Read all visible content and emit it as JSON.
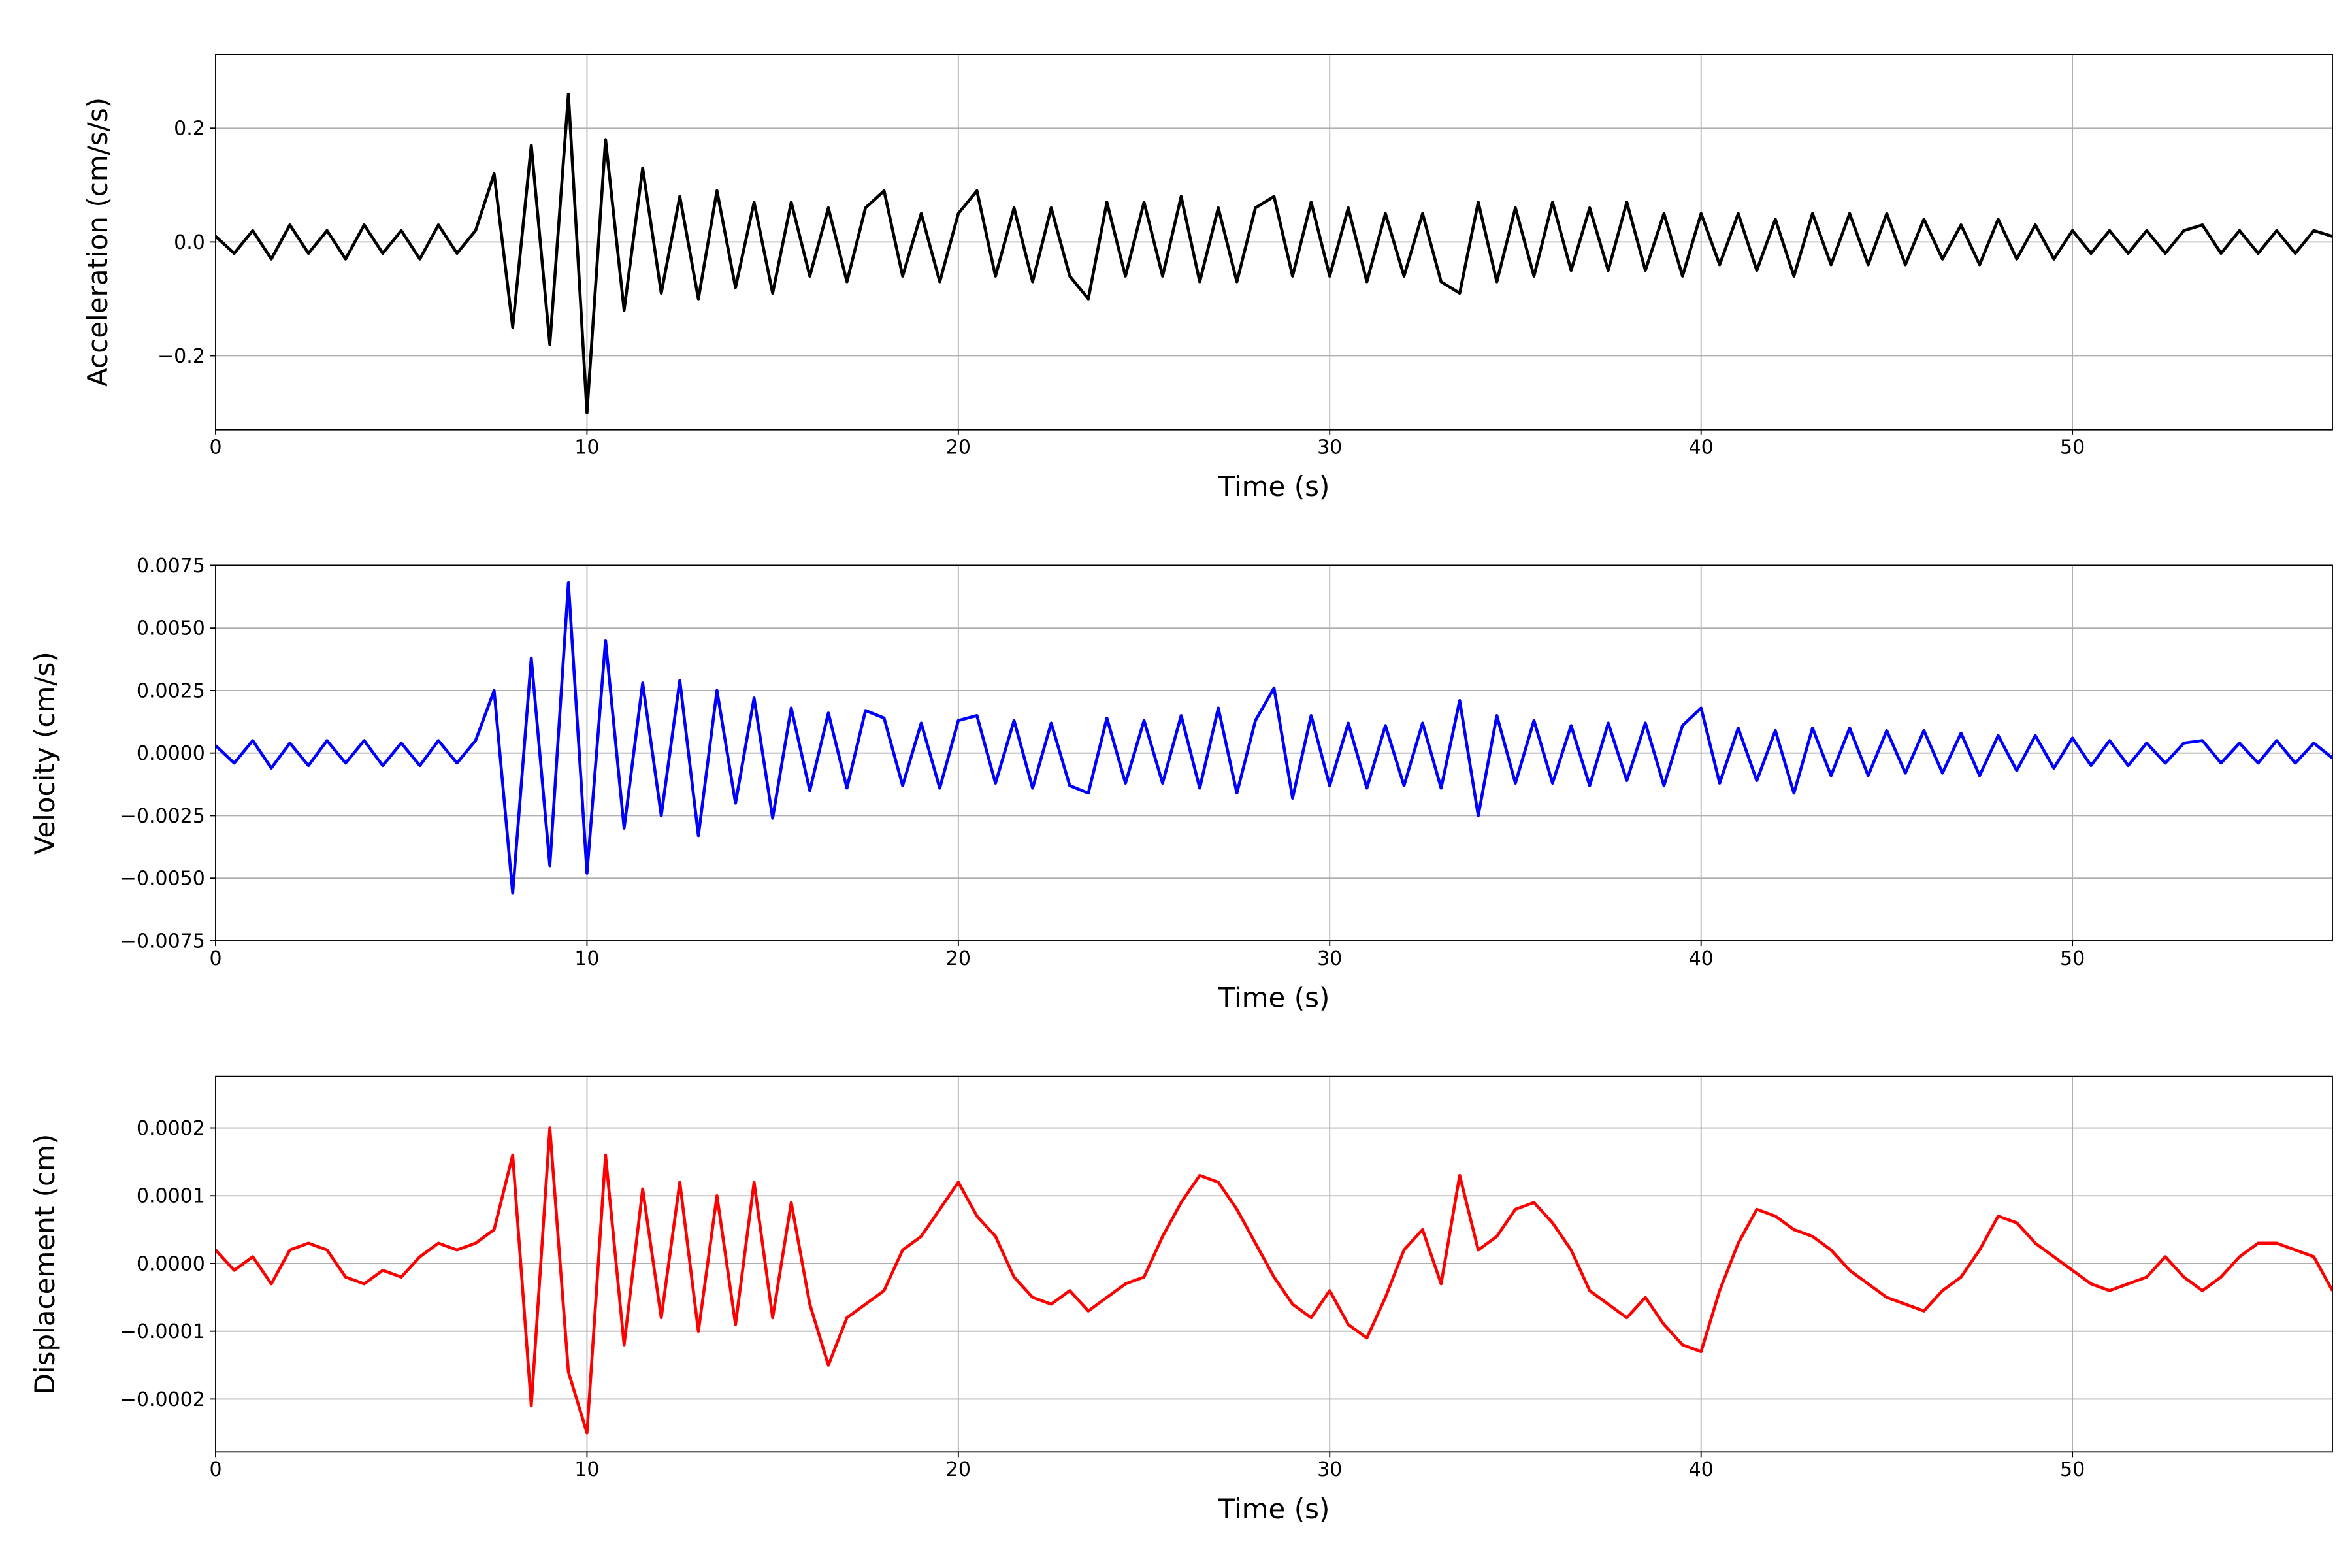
{
  "chart_data": [
    {
      "type": "line",
      "ylabel": "Acceleration (cm/s/s)",
      "xlabel": "Time (s)",
      "color": "#000000",
      "grid": true,
      "xlim": [
        0,
        57
      ],
      "xticks": [
        0,
        10,
        20,
        30,
        40,
        50
      ],
      "ylim": [
        -0.33,
        0.33
      ],
      "yticks": [
        {
          "value": -0.2,
          "label": "−0.2"
        },
        {
          "value": 0,
          "label": "0.0"
        },
        0.2
      ],
      "x": [
        0,
        0.5,
        1,
        1.5,
        2,
        2.5,
        3,
        3.5,
        4,
        4.5,
        5,
        5.5,
        6,
        6.5,
        7,
        7.5,
        8,
        8.5,
        9,
        9.5,
        10,
        10.5,
        11,
        11.5,
        12,
        12.5,
        13,
        13.5,
        14,
        14.5,
        15,
        15.5,
        16,
        16.5,
        17,
        17.5,
        18,
        18.5,
        19,
        19.5,
        20,
        20.5,
        21,
        21.5,
        22,
        22.5,
        23,
        23.5,
        24,
        24.5,
        25,
        25.5,
        26,
        26.5,
        27,
        27.5,
        28,
        28.5,
        29,
        29.5,
        30,
        30.5,
        31,
        31.5,
        32,
        32.5,
        33,
        33.5,
        34,
        34.5,
        35,
        35.5,
        36,
        36.5,
        37,
        37.5,
        38,
        38.5,
        39,
        39.5,
        40,
        40.5,
        41,
        41.5,
        42,
        42.5,
        43,
        43.5,
        44,
        44.5,
        45,
        45.5,
        46,
        46.5,
        47,
        47.5,
        48,
        48.5,
        49,
        49.5,
        50,
        50.5,
        51,
        51.5,
        52,
        52.5,
        53,
        53.5,
        54,
        54.5,
        55,
        55.5,
        56,
        56.5,
        57
      ],
      "values": [
        0.01,
        -0.02,
        0.02,
        -0.03,
        0.03,
        -0.02,
        0.02,
        -0.03,
        0.03,
        -0.02,
        0.02,
        -0.03,
        0.03,
        -0.02,
        0.02,
        0.12,
        -0.15,
        0.17,
        -0.18,
        0.26,
        -0.3,
        0.18,
        -0.12,
        0.13,
        -0.09,
        0.08,
        -0.1,
        0.09,
        -0.08,
        0.07,
        -0.09,
        0.07,
        -0.06,
        0.06,
        -0.07,
        0.06,
        0.09,
        -0.06,
        0.05,
        -0.07,
        0.05,
        0.09,
        -0.06,
        0.06,
        -0.07,
        0.06,
        -0.06,
        -0.1,
        0.07,
        -0.06,
        0.07,
        -0.06,
        0.08,
        -0.07,
        0.06,
        -0.07,
        0.06,
        0.08,
        -0.06,
        0.07,
        -0.06,
        0.06,
        -0.07,
        0.05,
        -0.06,
        0.05,
        -0.07,
        -0.09,
        0.07,
        -0.07,
        0.06,
        -0.06,
        0.07,
        -0.05,
        0.06,
        -0.05,
        0.07,
        -0.05,
        0.05,
        -0.06,
        0.05,
        -0.04,
        0.05,
        -0.05,
        0.04,
        -0.06,
        0.05,
        -0.04,
        0.05,
        -0.04,
        0.05,
        -0.04,
        0.04,
        -0.03,
        0.03,
        -0.04,
        0.04,
        -0.03,
        0.03,
        -0.03,
        0.02,
        -0.02,
        0.02,
        -0.02,
        0.02,
        -0.02,
        0.02,
        0.03,
        -0.02,
        0.02,
        -0.02,
        0.02,
        -0.02,
        0.02,
        0.01
      ]
    },
    {
      "type": "line",
      "ylabel": "Velocity (cm/s)",
      "xlabel": "Time (s)",
      "color": "#0000ff",
      "grid": true,
      "xlim": [
        0,
        57
      ],
      "xticks": [
        0,
        10,
        20,
        30,
        40,
        50
      ],
      "ylim": [
        -0.0075,
        0.0075
      ],
      "yticks": [
        {
          "value": -0.0075,
          "label": "−0.0075"
        },
        {
          "value": -0.005,
          "label": "−0.0050"
        },
        {
          "value": -0.0025,
          "label": "−0.0025"
        },
        {
          "value": 0,
          "label": "0.0000"
        },
        0.0025,
        {
          "value": 0.005,
          "label": "0.0050"
        },
        0.0075
      ],
      "x": [
        0,
        0.5,
        1,
        1.5,
        2,
        2.5,
        3,
        3.5,
        4,
        4.5,
        5,
        5.5,
        6,
        6.5,
        7,
        7.5,
        8,
        8.5,
        9,
        9.5,
        10,
        10.5,
        11,
        11.5,
        12,
        12.5,
        13,
        13.5,
        14,
        14.5,
        15,
        15.5,
        16,
        16.5,
        17,
        17.5,
        18,
        18.5,
        19,
        19.5,
        20,
        20.5,
        21,
        21.5,
        22,
        22.5,
        23,
        23.5,
        24,
        24.5,
        25,
        25.5,
        26,
        26.5,
        27,
        27.5,
        28,
        28.5,
        29,
        29.5,
        30,
        30.5,
        31,
        31.5,
        32,
        32.5,
        33,
        33.5,
        34,
        34.5,
        35,
        35.5,
        36,
        36.5,
        37,
        37.5,
        38,
        38.5,
        39,
        39.5,
        40,
        40.5,
        41,
        41.5,
        42,
        42.5,
        43,
        43.5,
        44,
        44.5,
        45,
        45.5,
        46,
        46.5,
        47,
        47.5,
        48,
        48.5,
        49,
        49.5,
        50,
        50.5,
        51,
        51.5,
        52,
        52.5,
        53,
        53.5,
        54,
        54.5,
        55,
        55.5,
        56,
        56.5,
        57
      ],
      "values": [
        0.0003,
        -0.0004,
        0.0005,
        -0.0006,
        0.0004,
        -0.0005,
        0.0005,
        -0.0004,
        0.0005,
        -0.0005,
        0.0004,
        -0.0005,
        0.0005,
        -0.0004,
        0.0005,
        0.0025,
        -0.0056,
        0.0038,
        -0.0045,
        0.0068,
        -0.0048,
        0.0045,
        -0.003,
        0.0028,
        -0.0025,
        0.0029,
        -0.0033,
        0.0025,
        -0.002,
        0.0022,
        -0.0026,
        0.0018,
        -0.0015,
        0.0016,
        -0.0014,
        0.0017,
        0.0014,
        -0.0013,
        0.0012,
        -0.0014,
        0.0013,
        0.0015,
        -0.0012,
        0.0013,
        -0.0014,
        0.0012,
        -0.0013,
        -0.0016,
        0.0014,
        -0.0012,
        0.0013,
        -0.0012,
        0.0015,
        -0.0014,
        0.0018,
        -0.0016,
        0.0013,
        0.0026,
        -0.0018,
        0.0015,
        -0.0013,
        0.0012,
        -0.0014,
        0.0011,
        -0.0013,
        0.0012,
        -0.0014,
        0.0021,
        -0.0025,
        0.0015,
        -0.0012,
        0.0013,
        -0.0012,
        0.0011,
        -0.0013,
        0.0012,
        -0.0011,
        0.0012,
        -0.0013,
        0.0011,
        0.0018,
        -0.0012,
        0.001,
        -0.0011,
        0.0009,
        -0.0016,
        0.001,
        -0.0009,
        0.001,
        -0.0009,
        0.0009,
        -0.0008,
        0.0009,
        -0.0008,
        0.0008,
        -0.0009,
        0.0007,
        -0.0007,
        0.0007,
        -0.0006,
        0.0006,
        -0.0005,
        0.0005,
        -0.0005,
        0.0004,
        -0.0004,
        0.0004,
        0.0005,
        -0.0004,
        0.0004,
        -0.0004,
        0.0005,
        -0.0004,
        0.0004,
        -0.0002
      ]
    },
    {
      "type": "line",
      "ylabel": "Displacement (cm)",
      "xlabel": "Time (s)",
      "color": "#ff0000",
      "grid": true,
      "xlim": [
        0,
        57
      ],
      "xticks": [
        0,
        10,
        20,
        30,
        40,
        50
      ],
      "ylim": [
        -0.000278,
        0.000276
      ],
      "yticks": [
        {
          "value": -0.0002,
          "label": "−0.0002"
        },
        {
          "value": -0.0001,
          "label": "−0.0001"
        },
        {
          "value": 0,
          "label": "0.0000"
        },
        0.0001,
        0.0002
      ],
      "x": [
        0,
        0.5,
        1,
        1.5,
        2,
        2.5,
        3,
        3.5,
        4,
        4.5,
        5,
        5.5,
        6,
        6.5,
        7,
        7.5,
        8,
        8.5,
        9,
        9.5,
        10,
        10.5,
        11,
        11.5,
        12,
        12.5,
        13,
        13.5,
        14,
        14.5,
        15,
        15.5,
        16,
        16.5,
        17,
        17.5,
        18,
        18.5,
        19,
        19.5,
        20,
        20.5,
        21,
        21.5,
        22,
        22.5,
        23,
        23.5,
        24,
        24.5,
        25,
        25.5,
        26,
        26.5,
        27,
        27.5,
        28,
        28.5,
        29,
        29.5,
        30,
        30.5,
        31,
        31.5,
        32,
        32.5,
        33,
        33.5,
        34,
        34.5,
        35,
        35.5,
        36,
        36.5,
        37,
        37.5,
        38,
        38.5,
        39,
        39.5,
        40,
        40.5,
        41,
        41.5,
        42,
        42.5,
        43,
        43.5,
        44,
        44.5,
        45,
        45.5,
        46,
        46.5,
        47,
        47.5,
        48,
        48.5,
        49,
        49.5,
        50,
        50.5,
        51,
        51.5,
        52,
        52.5,
        53,
        53.5,
        54,
        54.5,
        55,
        55.5,
        56,
        56.5,
        57
      ],
      "values": [
        2e-05,
        -1e-05,
        1e-05,
        -3e-05,
        2e-05,
        3e-05,
        2e-05,
        -2e-05,
        -3e-05,
        -1e-05,
        -2e-05,
        1e-05,
        3e-05,
        2e-05,
        3e-05,
        5e-05,
        0.00016,
        -0.00021,
        0.0002,
        -0.00016,
        -0.00025,
        0.00016,
        -0.00012,
        0.00011,
        -8e-05,
        0.00012,
        -0.0001,
        0.0001,
        -9e-05,
        0.00012,
        -8e-05,
        9e-05,
        -6e-05,
        -0.00015,
        -8e-05,
        -6e-05,
        -4e-05,
        2e-05,
        4e-05,
        8e-05,
        0.00012,
        7e-05,
        4e-05,
        -2e-05,
        -5e-05,
        -6e-05,
        -4e-05,
        -7e-05,
        -5e-05,
        -3e-05,
        -2e-05,
        4e-05,
        9e-05,
        0.00013,
        0.00012,
        8e-05,
        3e-05,
        -2e-05,
        -6e-05,
        -8e-05,
        -4e-05,
        -9e-05,
        -0.00011,
        -5e-05,
        2e-05,
        5e-05,
        -3e-05,
        0.00013,
        2e-05,
        4e-05,
        8e-05,
        9e-05,
        6e-05,
        2e-05,
        -4e-05,
        -6e-05,
        -8e-05,
        -5e-05,
        -9e-05,
        -0.00012,
        -0.00013,
        -4e-05,
        3e-05,
        8e-05,
        7e-05,
        5e-05,
        4e-05,
        2e-05,
        -1e-05,
        -3e-05,
        -5e-05,
        -6e-05,
        -7e-05,
        -4e-05,
        -2e-05,
        2e-05,
        7e-05,
        6e-05,
        3e-05,
        1e-05,
        -1e-05,
        -3e-05,
        -4e-05,
        -3e-05,
        -2e-05,
        1e-05,
        -2e-05,
        -4e-05,
        -2e-05,
        1e-05,
        3e-05,
        3e-05,
        2e-05,
        1e-05,
        -4e-05
      ]
    }
  ]
}
